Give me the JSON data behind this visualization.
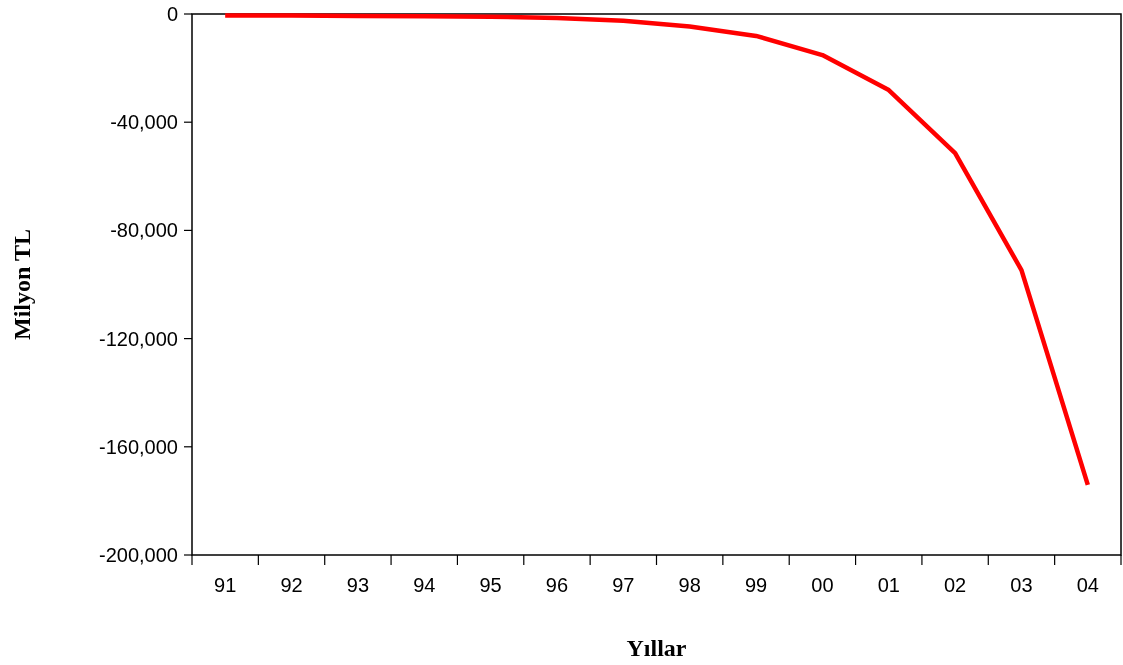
{
  "chart_data": {
    "type": "line",
    "xlabel": "Yıllar",
    "ylabel": "Milyon TL",
    "categories": [
      "91",
      "92",
      "93",
      "94",
      "95",
      "96",
      "97",
      "98",
      "99",
      "00",
      "01",
      "02",
      "03",
      "04"
    ],
    "series": [
      {
        "color": "#ff0000",
        "values": [
          -600,
          -600,
          -700,
          -800,
          -1000,
          -1500,
          -2500,
          -4600,
          -8100,
          -15200,
          -28100,
          -51400,
          -94700,
          -174100
        ]
      }
    ],
    "ylim": [
      -200000,
      0
    ],
    "yticks": [
      {
        "value": -200000,
        "label": "-200,000"
      },
      {
        "value": -160000,
        "label": "-160,000"
      },
      {
        "value": -120000,
        "label": "-120,000"
      },
      {
        "value": -80000,
        "label": "-80,000"
      },
      {
        "value": -40000,
        "label": "-40,000"
      },
      0
    ],
    "line_style": "solid"
  }
}
